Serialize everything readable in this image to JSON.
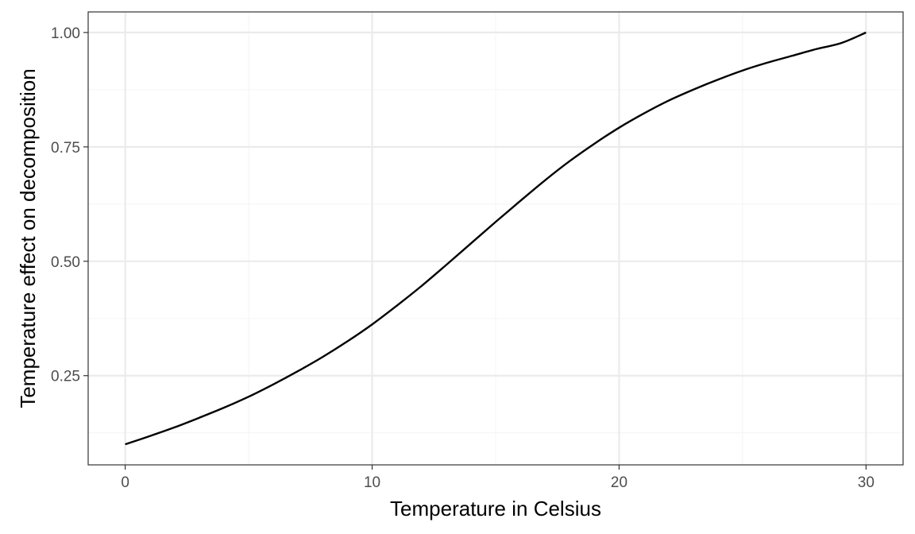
{
  "chart_data": {
    "type": "line",
    "title": "",
    "xlabel": "Temperature in Celsius",
    "ylabel": "Temperature effect on decomposition",
    "xlim": [
      -1.5,
      31.5
    ],
    "ylim": [
      0.055,
      1.045
    ],
    "x_ticks": [
      {
        "value": 0,
        "label": "0"
      },
      {
        "value": 10,
        "label": "10"
      },
      {
        "value": 20,
        "label": "20"
      },
      {
        "value": 30,
        "label": "30"
      }
    ],
    "y_ticks": [
      {
        "value": 0.25,
        "label": "0.25"
      },
      {
        "value": 0.5,
        "label": "0.50"
      },
      {
        "value": 0.75,
        "label": "0.75"
      },
      {
        "value": 1.0,
        "label": "1.00"
      }
    ],
    "x_minor_grid": [
      5,
      15,
      25
    ],
    "y_minor_grid": [
      0.125,
      0.375,
      0.625,
      0.875
    ],
    "grid": true,
    "legend": "none",
    "series": [
      {
        "color": "#000000",
        "x": [
          0,
          1,
          2,
          3,
          4,
          5,
          6,
          7,
          8,
          9,
          10,
          11,
          12,
          13,
          14,
          15,
          16,
          17,
          18,
          19,
          20,
          21,
          22,
          23,
          24,
          25,
          26,
          27,
          28,
          29,
          30
        ],
        "y": [
          0.1,
          0.118,
          0.137,
          0.158,
          0.18,
          0.204,
          0.231,
          0.26,
          0.291,
          0.325,
          0.362,
          0.403,
          0.446,
          0.492,
          0.539,
          0.586,
          0.632,
          0.677,
          0.719,
          0.757,
          0.792,
          0.823,
          0.851,
          0.875,
          0.897,
          0.917,
          0.934,
          0.949,
          0.964,
          0.977,
          1.0
        ]
      }
    ]
  },
  "colors": {
    "background": "#ffffff",
    "panel_border": "#333333",
    "grid_major": "#ebebeb",
    "grid_minor": "#f5f5f5",
    "tick_mark": "#333333"
  }
}
